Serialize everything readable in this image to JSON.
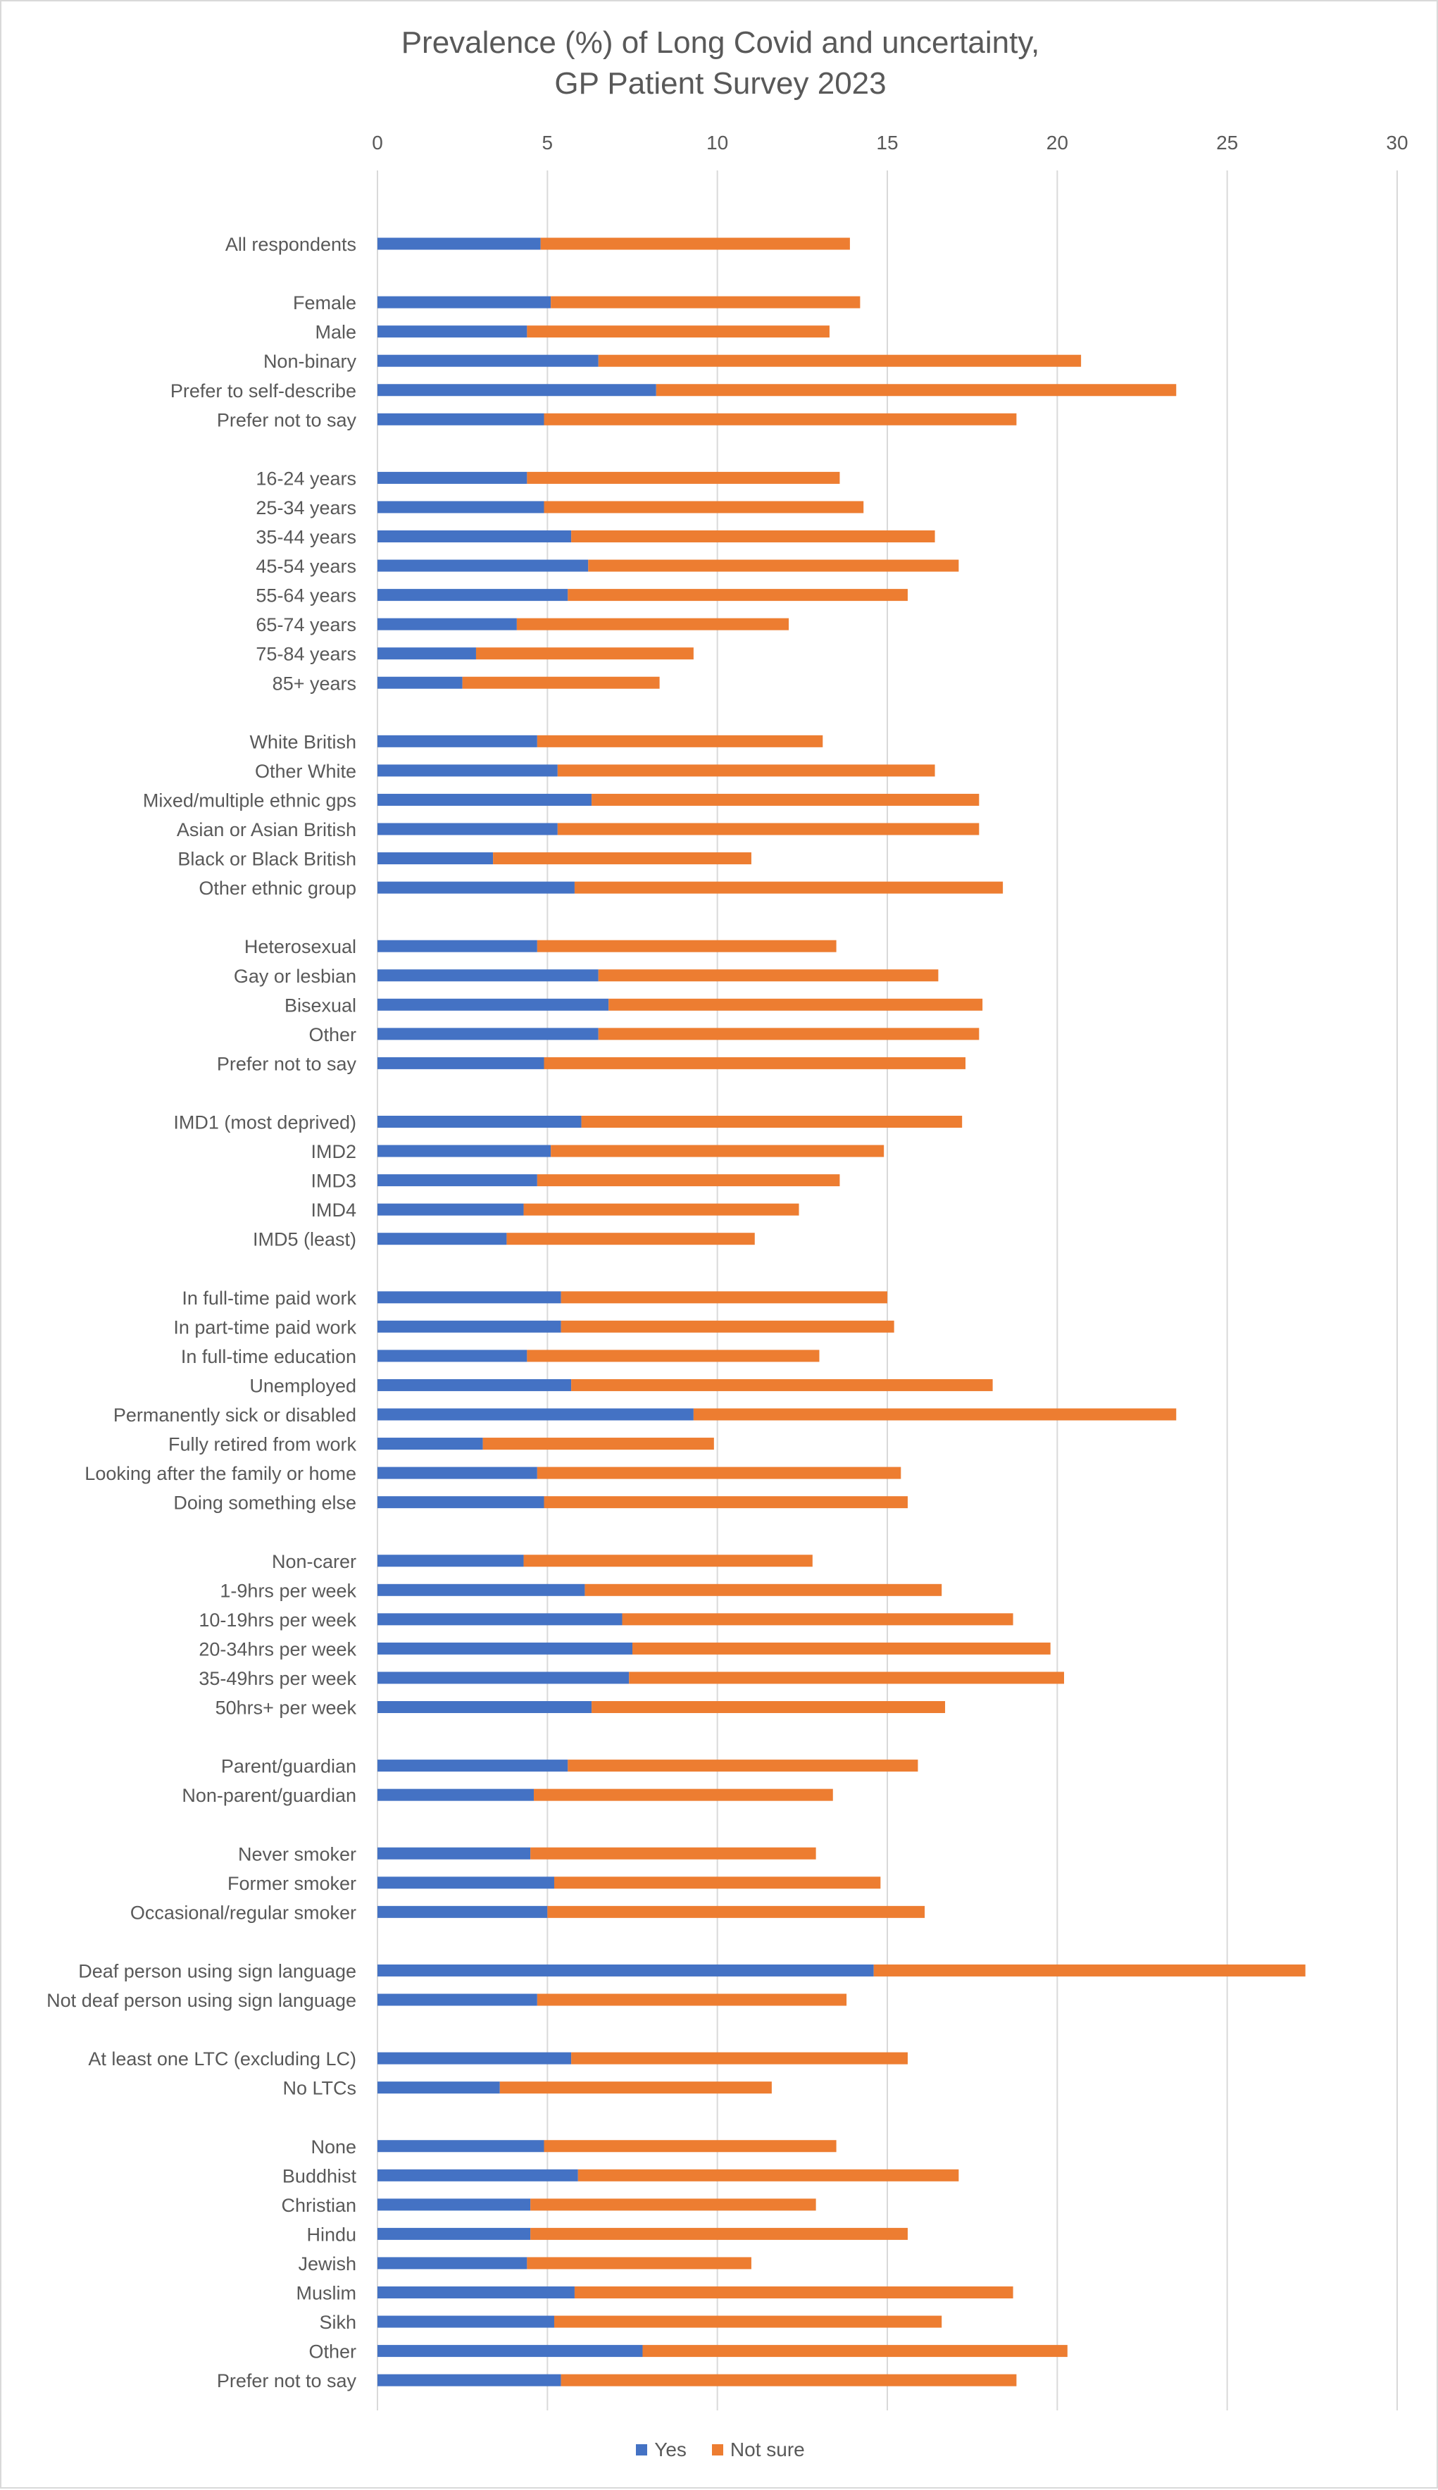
{
  "chart_data": {
    "type": "bar",
    "orientation": "horizontal",
    "stacked": true,
    "title": "Prevalence (%) of Long Covid and uncertainty,",
    "subtitle": "GP Patient Survey 2023",
    "xlim": [
      0,
      30
    ],
    "xticks": [
      0,
      5,
      10,
      15,
      20,
      25,
      30
    ],
    "x_axis_position": "top",
    "grid": true,
    "legend_position": "bottom",
    "colors": {
      "Yes": "#4472C4",
      "Not sure": "#ED7D31"
    },
    "categories": [
      "All respondents",
      "",
      "Female",
      "Male",
      "Non-binary",
      "Prefer to self-describe",
      "Prefer not to say",
      "",
      "16-24 years",
      "25-34 years",
      "35-44 years",
      "45-54 years",
      "55-64 years",
      "65-74 years",
      "75-84 years",
      "85+ years",
      "",
      "White British",
      "Other White",
      "Mixed/multiple ethnic gps",
      "Asian or Asian British",
      "Black or Black British",
      "Other ethnic group",
      "",
      "Heterosexual",
      "Gay or lesbian",
      "Bisexual",
      "Other",
      "Prefer not to say",
      "",
      "IMD1 (most deprived)",
      "IMD2",
      "IMD3",
      "IMD4",
      "IMD5 (least)",
      "",
      "In full-time paid work",
      "In part-time paid work",
      "In full-time education",
      "Unemployed",
      "Permanently sick or disabled",
      "Fully retired from work",
      "Looking after the family or home",
      "Doing something else",
      "",
      "Non-carer",
      "1-9hrs per week",
      "10-19hrs per week",
      "20-34hrs per week",
      "35-49hrs per week",
      "50hrs+ per week",
      "",
      "Parent/guardian",
      "Non-parent/guardian",
      "",
      "Never smoker",
      "Former smoker",
      "Occasional/regular smoker",
      "",
      "Deaf person using sign language",
      "Not deaf person using sign language",
      "",
      "At least one LTC (excluding LC)",
      "No LTCs",
      "",
      "None",
      "Buddhist",
      "Christian",
      "Hindu",
      "Jewish",
      "Muslim",
      "Sikh",
      "Other",
      "Prefer not to say"
    ],
    "series": [
      {
        "name": "Yes",
        "values": [
          4.8,
          null,
          5.1,
          4.4,
          6.5,
          8.2,
          4.9,
          null,
          4.4,
          4.9,
          5.7,
          6.2,
          5.6,
          4.1,
          2.9,
          2.5,
          null,
          4.7,
          5.3,
          6.3,
          5.3,
          3.4,
          5.8,
          null,
          4.7,
          6.5,
          6.8,
          6.5,
          4.9,
          null,
          6.0,
          5.1,
          4.7,
          4.3,
          3.8,
          null,
          5.4,
          5.4,
          4.4,
          5.7,
          9.3,
          3.1,
          4.7,
          4.9,
          null,
          4.3,
          6.1,
          7.2,
          7.5,
          7.4,
          6.3,
          null,
          5.6,
          4.6,
          null,
          4.5,
          5.2,
          5.0,
          null,
          14.6,
          4.7,
          null,
          5.7,
          3.6,
          null,
          4.9,
          5.9,
          4.5,
          4.5,
          4.4,
          5.8,
          5.2,
          7.8,
          5.4
        ]
      },
      {
        "name": "Not sure",
        "values": [
          9.1,
          null,
          9.1,
          8.9,
          14.2,
          15.3,
          13.9,
          null,
          9.2,
          9.4,
          10.7,
          10.9,
          10.0,
          8.0,
          6.4,
          5.8,
          null,
          8.4,
          11.1,
          11.4,
          12.4,
          7.6,
          12.6,
          null,
          8.8,
          10.0,
          11.0,
          11.2,
          12.4,
          null,
          11.2,
          9.8,
          8.9,
          8.1,
          7.3,
          null,
          9.6,
          9.8,
          8.6,
          12.4,
          14.2,
          6.8,
          10.7,
          10.7,
          null,
          8.5,
          10.5,
          11.5,
          12.3,
          12.8,
          10.4,
          null,
          10.3,
          8.8,
          null,
          8.4,
          9.6,
          11.1,
          null,
          12.7,
          9.1,
          null,
          9.9,
          8.0,
          null,
          8.6,
          11.2,
          8.4,
          11.1,
          6.6,
          12.9,
          11.4,
          12.5,
          13.4
        ]
      }
    ]
  }
}
